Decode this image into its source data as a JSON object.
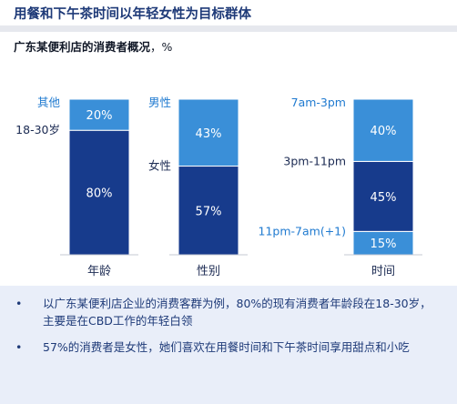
{
  "title": "用餐和下午茶时间以年轻女性为目标群体",
  "subtitle": {
    "bold": "广东某便利店的消费者概况",
    "unit": "，%"
  },
  "colors": {
    "dark": "#173b8c",
    "light": "#3a8fd8",
    "label": "#1f7ad0",
    "text_dark": "#1b2a52",
    "notes_bg": "#e9eef9"
  },
  "chart_data": [
    {
      "type": "bar",
      "stacked": true,
      "categories": [
        "年龄"
      ],
      "series": [
        {
          "name": "18-30岁",
          "values": [
            80
          ],
          "color": "#173b8c"
        },
        {
          "name": "其他",
          "values": [
            20
          ],
          "color": "#3a8fd8"
        }
      ],
      "ylim": [
        0,
        100
      ]
    },
    {
      "type": "bar",
      "stacked": true,
      "categories": [
        "性别"
      ],
      "series": [
        {
          "name": "女性",
          "values": [
            57
          ],
          "color": "#173b8c"
        },
        {
          "name": "男性",
          "values": [
            43
          ],
          "color": "#3a8fd8"
        }
      ],
      "ylim": [
        0,
        100
      ]
    },
    {
      "type": "bar",
      "stacked": true,
      "categories": [
        "时间"
      ],
      "series": [
        {
          "name": "11pm-7am(+1)",
          "values": [
            15
          ],
          "color": "#3a8fd8"
        },
        {
          "name": "3pm-11pm",
          "values": [
            45
          ],
          "color": "#173b8c"
        },
        {
          "name": "7am-3pm",
          "values": [
            40
          ],
          "color": "#3a8fd8"
        }
      ],
      "ylim": [
        0,
        100
      ]
    }
  ],
  "notes": [
    {
      "bullet": "•",
      "text": "以广东某便利店企业的消费客群为例，80%的现有消费者年龄段在18-30岁，主要是在CBD工作的年轻白领"
    },
    {
      "bullet": "•",
      "text": "57%的消费者是女性，她们喜欢在用餐时间和下午茶时间享用甜点和小吃"
    }
  ]
}
